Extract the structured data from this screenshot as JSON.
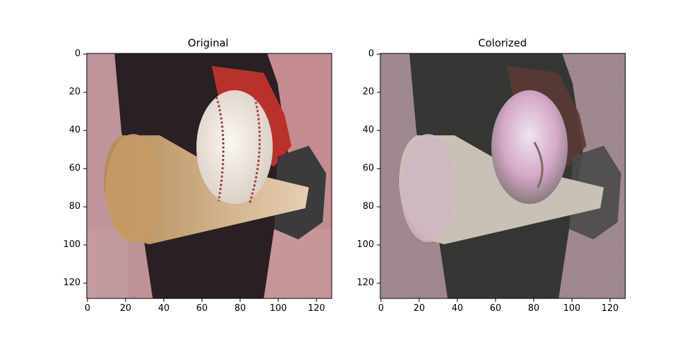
{
  "panels": [
    {
      "title": "Original",
      "xticks": [
        "0",
        "20",
        "40",
        "60",
        "80",
        "100",
        "120"
      ],
      "yticks": [
        "0",
        "20",
        "40",
        "60",
        "80",
        "100",
        "120"
      ]
    },
    {
      "title": "Colorized",
      "xticks": [
        "0",
        "20",
        "40",
        "60",
        "80",
        "100",
        "120"
      ],
      "yticks": [
        "0",
        "20",
        "40",
        "60",
        "80",
        "100",
        "120"
      ]
    }
  ],
  "colors": {
    "crowd_bg": "#b9878a",
    "jersey": "#2a1f22",
    "sleeve_red": "#b8322b",
    "bat": "#c9a676",
    "ball": "#efe6da",
    "glove": "#3b3b3b"
  }
}
